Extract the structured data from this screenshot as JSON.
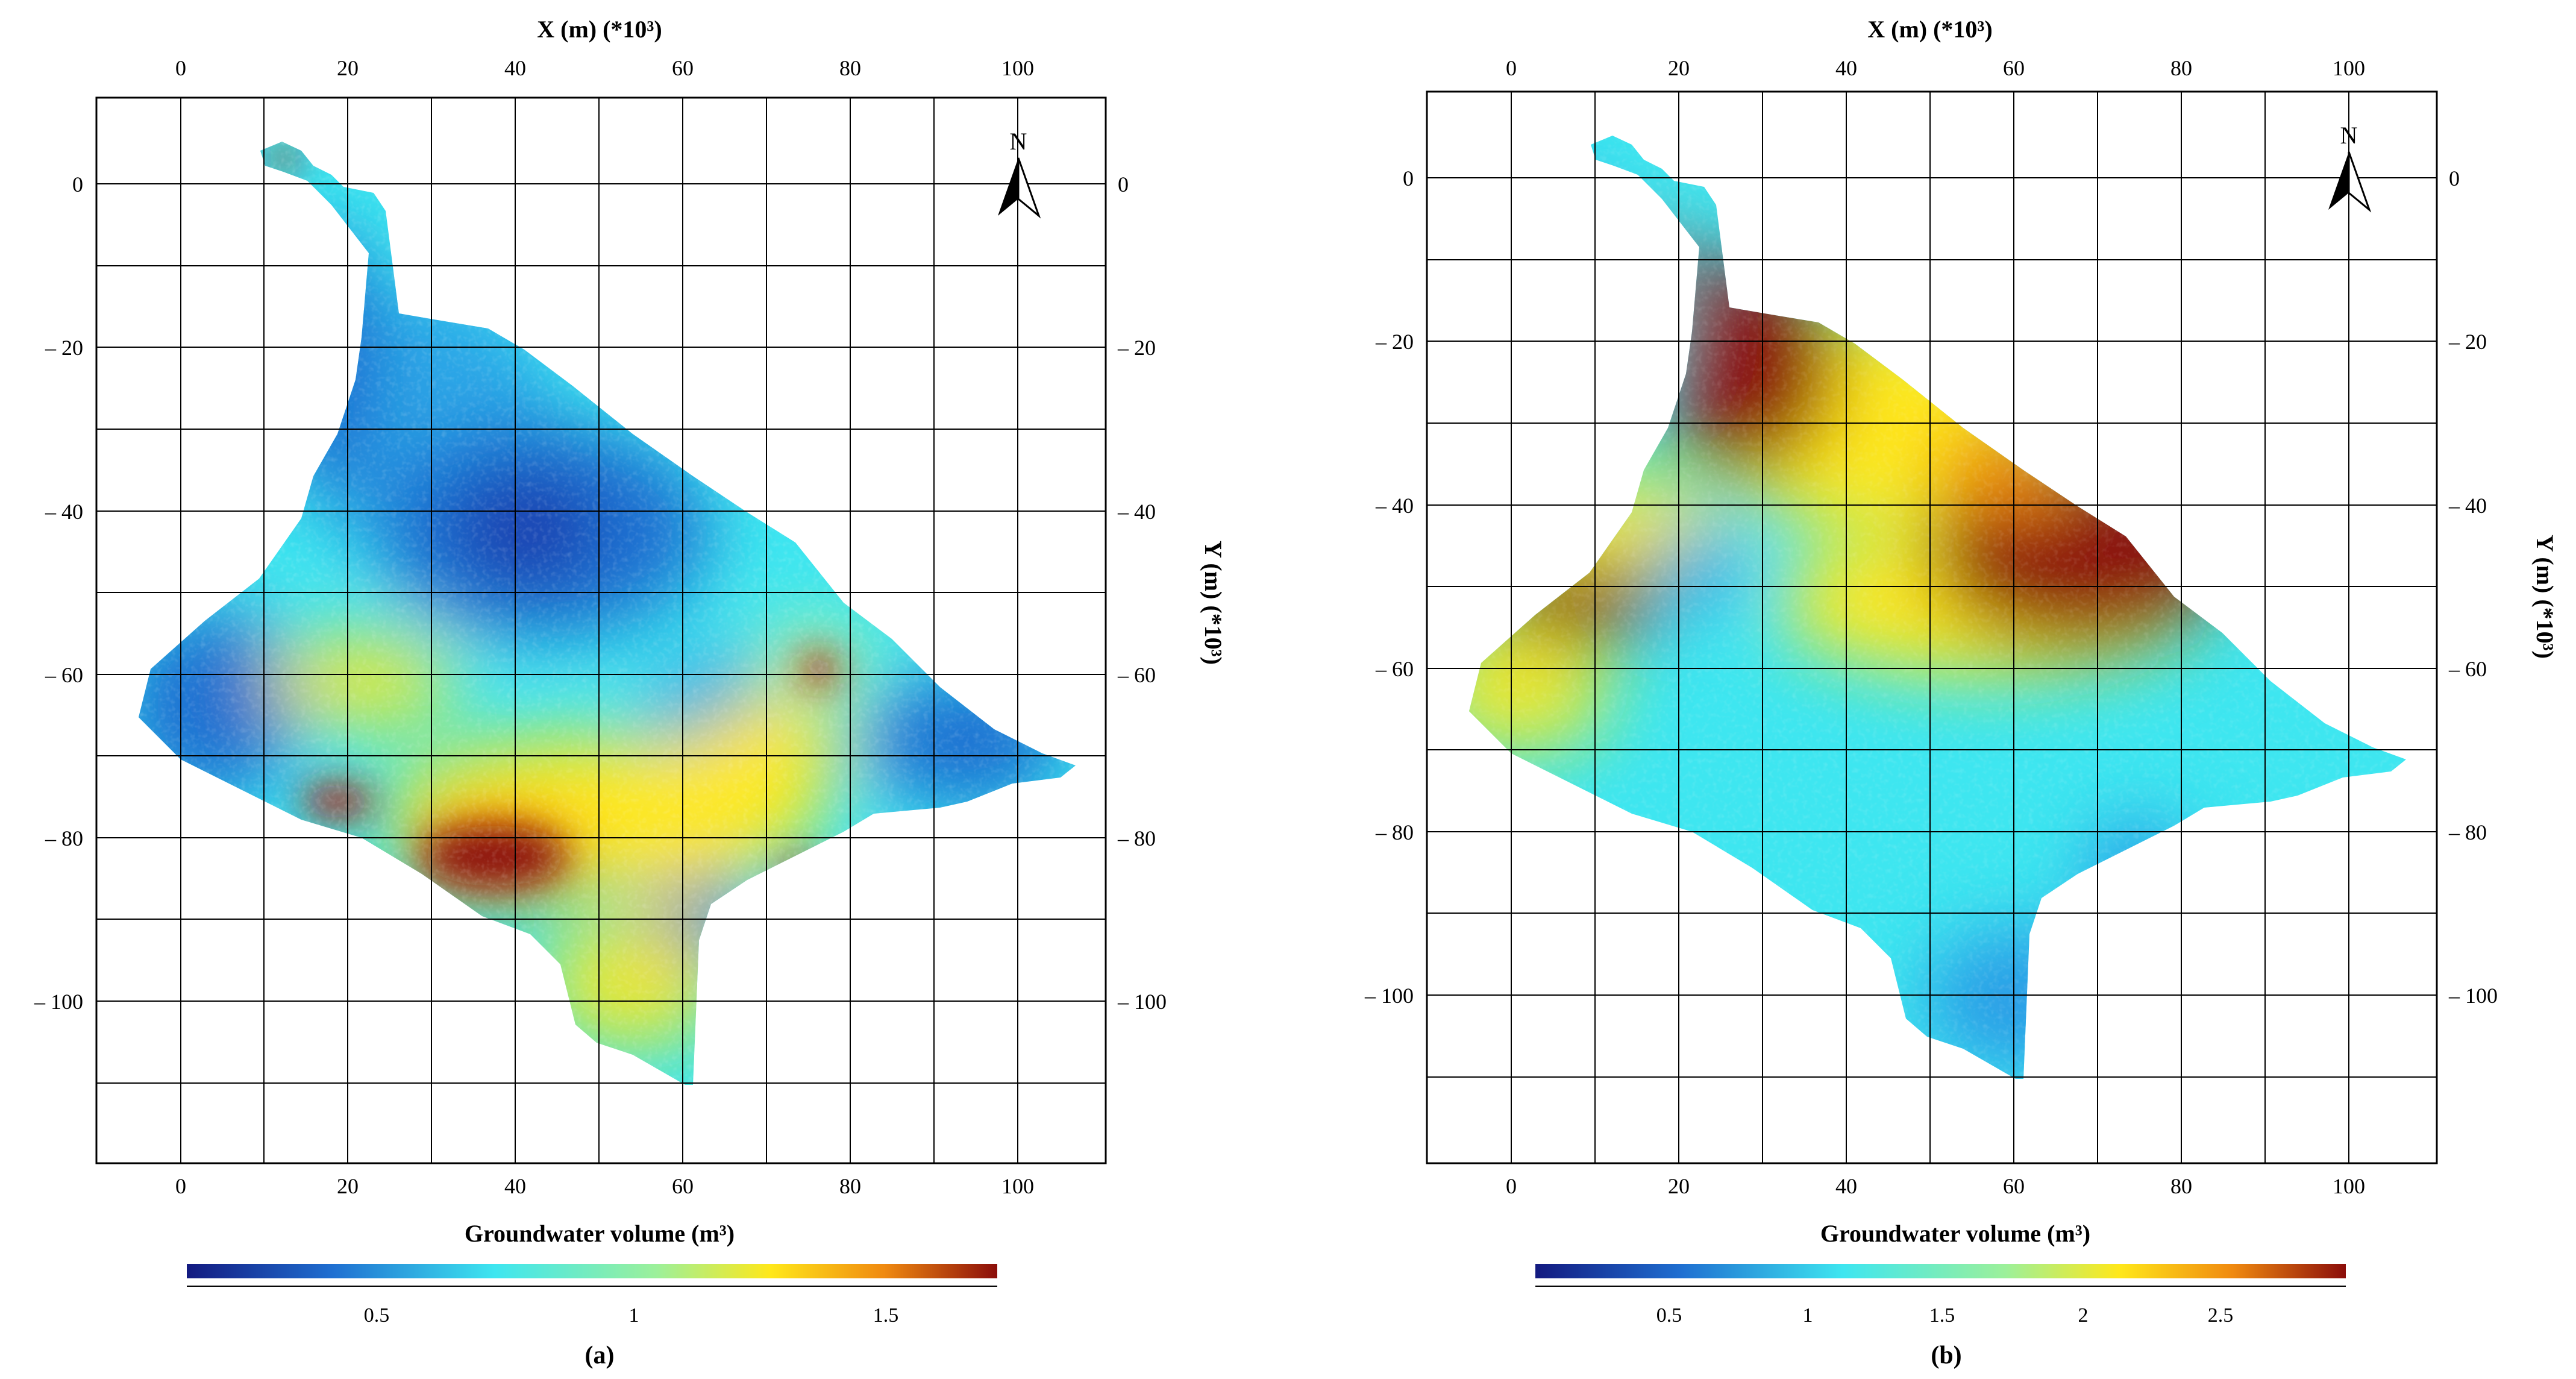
{
  "figure": {
    "panels": [
      {
        "id": "a",
        "tag": "(a)",
        "x_axis_title": "X (m) (*10³)",
        "y_axis_title": "Y (m) (*10³)",
        "x_ticks": [
          "0",
          "20",
          "40",
          "60",
          "80",
          "100"
        ],
        "y_ticks_left": [
          "0",
          "– 20",
          "– 40",
          "– 60",
          "– 80",
          "– 100"
        ],
        "y_ticks_right": [
          "0",
          "– 20",
          "– 40",
          "– 60",
          "– 80",
          "– 100"
        ],
        "north_label": "N",
        "colorbar": {
          "title": "Groundwater volume (m³)",
          "labels": [
            "0.5",
            "1",
            "1.5"
          ]
        }
      },
      {
        "id": "b",
        "tag": "(b)",
        "x_axis_title": "X (m) (*10³)",
        "y_axis_title": "Y (m) (*10³)",
        "x_ticks": [
          "0",
          "20",
          "40",
          "60",
          "80",
          "100"
        ],
        "y_ticks_left": [
          "0",
          "– 20",
          "– 40",
          "– 60",
          "– 80",
          "– 100"
        ],
        "y_ticks_right": [
          "0",
          "– 20",
          "– 40",
          "– 60",
          "– 80",
          "– 100"
        ],
        "north_label": "N",
        "colorbar": {
          "title": "Groundwater volume (m³)",
          "labels": [
            "0.5",
            "1",
            "1.5",
            "2",
            "2.5"
          ]
        }
      }
    ],
    "colors": {
      "dark_blue": "#1a237e",
      "blue": "#1f6fd1",
      "cyan": "#3ee6f0",
      "yellow": "#ffe81a",
      "orange": "#f08a10",
      "dark_red": "#8b0d0a"
    }
  }
}
